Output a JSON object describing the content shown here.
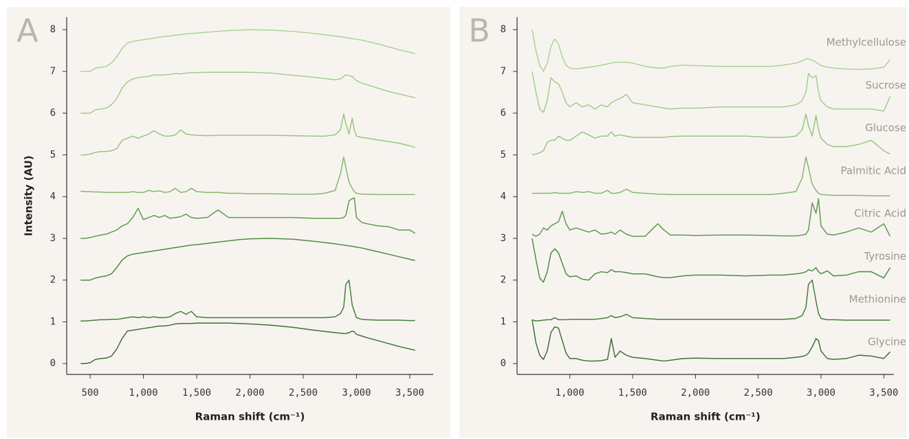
{
  "chart_data": [
    {
      "type": "line",
      "label": "A",
      "xlabel": "Raman shift (cm⁻¹)",
      "ylabel": "Intensity (AU)",
      "xlim": [
        280,
        3720
      ],
      "ylim": [
        -0.26,
        8.3
      ],
      "xticks": [
        500,
        {
          "value": 1000,
          "label": "1,000"
        },
        {
          "value": 1500,
          "label": "1,500"
        },
        {
          "value": 2000,
          "label": "2,000"
        },
        {
          "value": 2500,
          "label": "2,500"
        },
        {
          "value": 3000,
          "label": "3,000"
        },
        {
          "value": 3500,
          "label": "3,500"
        }
      ],
      "yticks": [
        0,
        1,
        2,
        3,
        4,
        5,
        6,
        7,
        8
      ],
      "x": [
        410,
        450,
        500,
        550,
        600,
        650,
        700,
        750,
        800,
        850,
        900,
        950,
        1000,
        1050,
        1100,
        1150,
        1200,
        1250,
        1300,
        1350,
        1400,
        1450,
        1500,
        1600,
        1700,
        1800,
        1900,
        2000,
        2200,
        2400,
        2600,
        2700,
        2800,
        2850,
        2880,
        2900,
        2930,
        2960,
        2980,
        3000,
        3050,
        3100,
        3200,
        3300,
        3400,
        3500,
        3550
      ],
      "series": [
        {
          "color": "#acd391",
          "values": [
            7.0,
            7.0,
            7.0,
            7.08,
            7.1,
            7.12,
            7.2,
            7.35,
            7.55,
            7.68,
            7.72,
            7.74,
            7.76,
            7.78,
            7.8,
            7.82,
            7.84,
            7.85,
            7.87,
            7.88,
            7.9,
            7.91,
            7.92,
            7.94,
            7.96,
            7.98,
            7.99,
            8.0,
            7.99,
            7.96,
            7.91,
            7.88,
            7.85,
            7.83,
            7.82,
            7.81,
            7.8,
            7.79,
            7.78,
            7.77,
            7.75,
            7.72,
            7.66,
            7.59,
            7.52,
            7.46,
            7.43
          ]
        },
        {
          "color": "#a2cd88",
          "values": [
            6.0,
            6.0,
            6.0,
            6.08,
            6.1,
            6.12,
            6.2,
            6.35,
            6.6,
            6.75,
            6.82,
            6.85,
            6.87,
            6.88,
            6.92,
            6.91,
            6.92,
            6.93,
            6.95,
            6.94,
            6.96,
            6.97,
            6.97,
            6.98,
            6.98,
            6.98,
            6.98,
            6.98,
            6.96,
            6.91,
            6.86,
            6.83,
            6.8,
            6.82,
            6.88,
            6.92,
            6.9,
            6.88,
            6.82,
            6.78,
            6.72,
            6.68,
            6.6,
            6.52,
            6.46,
            6.4,
            6.37
          ]
        },
        {
          "color": "#97c67d",
          "values": [
            5.0,
            5.0,
            5.02,
            5.06,
            5.08,
            5.08,
            5.1,
            5.15,
            5.35,
            5.4,
            5.45,
            5.4,
            5.45,
            5.5,
            5.58,
            5.5,
            5.45,
            5.45,
            5.48,
            5.6,
            5.5,
            5.48,
            5.47,
            5.46,
            5.47,
            5.47,
            5.47,
            5.47,
            5.47,
            5.46,
            5.45,
            5.45,
            5.48,
            5.6,
            5.98,
            5.75,
            5.5,
            5.88,
            5.6,
            5.45,
            5.42,
            5.4,
            5.36,
            5.32,
            5.28,
            5.22,
            5.18
          ]
        },
        {
          "color": "#84b86c",
          "values": [
            4.13,
            4.12,
            4.12,
            4.11,
            4.11,
            4.1,
            4.1,
            4.1,
            4.1,
            4.1,
            4.12,
            4.1,
            4.1,
            4.15,
            4.12,
            4.14,
            4.1,
            4.12,
            4.2,
            4.1,
            4.12,
            4.2,
            4.12,
            4.1,
            4.1,
            4.08,
            4.08,
            4.07,
            4.07,
            4.06,
            4.06,
            4.08,
            4.15,
            4.55,
            4.95,
            4.7,
            4.35,
            4.2,
            4.12,
            4.08,
            4.06,
            4.06,
            4.05,
            4.05,
            4.05,
            4.05,
            4.05
          ]
        },
        {
          "color": "#5f9b4d",
          "values": [
            3.0,
            3.0,
            3.02,
            3.05,
            3.08,
            3.1,
            3.15,
            3.2,
            3.3,
            3.35,
            3.5,
            3.72,
            3.45,
            3.5,
            3.55,
            3.5,
            3.55,
            3.48,
            3.5,
            3.52,
            3.58,
            3.5,
            3.48,
            3.5,
            3.68,
            3.5,
            3.5,
            3.5,
            3.5,
            3.5,
            3.48,
            3.48,
            3.48,
            3.48,
            3.5,
            3.55,
            3.9,
            3.95,
            3.97,
            3.5,
            3.38,
            3.35,
            3.3,
            3.28,
            3.2,
            3.2,
            3.12
          ]
        },
        {
          "color": "#4e8b41",
          "values": [
            2.0,
            2.0,
            2.0,
            2.05,
            2.08,
            2.1,
            2.15,
            2.3,
            2.48,
            2.58,
            2.62,
            2.64,
            2.66,
            2.68,
            2.7,
            2.72,
            2.74,
            2.76,
            2.78,
            2.8,
            2.82,
            2.84,
            2.85,
            2.88,
            2.91,
            2.94,
            2.97,
            2.99,
            3.0,
            2.98,
            2.93,
            2.9,
            2.87,
            2.85,
            2.84,
            2.83,
            2.82,
            2.81,
            2.8,
            2.79,
            2.77,
            2.74,
            2.68,
            2.62,
            2.56,
            2.5,
            2.47
          ]
        },
        {
          "color": "#457d3b",
          "values": [
            1.02,
            1.02,
            1.03,
            1.04,
            1.05,
            1.05,
            1.06,
            1.06,
            1.08,
            1.1,
            1.12,
            1.1,
            1.12,
            1.1,
            1.12,
            1.1,
            1.1,
            1.12,
            1.2,
            1.25,
            1.18,
            1.25,
            1.12,
            1.1,
            1.1,
            1.1,
            1.1,
            1.1,
            1.1,
            1.1,
            1.1,
            1.1,
            1.12,
            1.2,
            1.35,
            1.9,
            2.0,
            1.4,
            1.25,
            1.1,
            1.06,
            1.05,
            1.04,
            1.04,
            1.04,
            1.03,
            1.03
          ]
        },
        {
          "color": "#3f7035",
          "values": [
            0,
            0,
            0.02,
            0.1,
            0.12,
            0.13,
            0.18,
            0.35,
            0.6,
            0.78,
            0.8,
            0.82,
            0.84,
            0.86,
            0.88,
            0.9,
            0.9,
            0.92,
            0.95,
            0.96,
            0.96,
            0.96,
            0.97,
            0.97,
            0.97,
            0.97,
            0.96,
            0.95,
            0.92,
            0.87,
            0.8,
            0.77,
            0.74,
            0.73,
            0.72,
            0.72,
            0.74,
            0.78,
            0.76,
            0.7,
            0.66,
            0.62,
            0.55,
            0.48,
            0.41,
            0.35,
            0.32
          ]
        }
      ]
    },
    {
      "type": "line",
      "label": "B",
      "xlabel": "Raman shift (cm⁻¹)",
      "xlim": [
        580,
        3580
      ],
      "ylim": [
        -0.26,
        8.3
      ],
      "xticks": [
        {
          "value": 1000,
          "label": "1,000"
        },
        {
          "value": 1500,
          "label": "1,500"
        },
        {
          "value": 2000,
          "label": "2,000"
        },
        {
          "value": 2500,
          "label": "2,500"
        },
        {
          "value": 3000,
          "label": "3,000"
        },
        {
          "value": 3500,
          "label": "3,500"
        }
      ],
      "yticks": [
        0,
        1,
        2,
        3,
        4,
        5,
        6,
        7,
        8
      ],
      "x": [
        700,
        730,
        760,
        790,
        820,
        850,
        880,
        910,
        940,
        970,
        1000,
        1050,
        1100,
        1150,
        1200,
        1250,
        1300,
        1330,
        1360,
        1400,
        1450,
        1500,
        1600,
        1700,
        1750,
        1800,
        1900,
        2000,
        2200,
        2400,
        2600,
        2700,
        2800,
        2850,
        2880,
        2900,
        2930,
        2960,
        2980,
        3000,
        3050,
        3100,
        3200,
        3300,
        3400,
        3500,
        3550
      ],
      "series": [
        {
          "name": "Methylcellulose",
          "color": "#acd391",
          "values": [
            8.0,
            7.5,
            7.15,
            7.0,
            7.2,
            7.6,
            7.78,
            7.65,
            7.35,
            7.15,
            7.08,
            7.06,
            7.08,
            7.1,
            7.12,
            7.15,
            7.18,
            7.2,
            7.22,
            7.22,
            7.22,
            7.2,
            7.12,
            7.08,
            7.08,
            7.12,
            7.15,
            7.14,
            7.12,
            7.12,
            7.12,
            7.15,
            7.2,
            7.25,
            7.3,
            7.3,
            7.27,
            7.22,
            7.18,
            7.14,
            7.1,
            7.08,
            7.06,
            7.05,
            7.06,
            7.1,
            7.28
          ]
        },
        {
          "name": "Sucrose",
          "color": "#a2cd88",
          "values": [
            7.0,
            6.5,
            6.1,
            6.02,
            6.3,
            6.85,
            6.75,
            6.7,
            6.5,
            6.25,
            6.15,
            6.25,
            6.15,
            6.2,
            6.1,
            6.2,
            6.15,
            6.25,
            6.3,
            6.35,
            6.45,
            6.25,
            6.2,
            6.15,
            6.12,
            6.1,
            6.12,
            6.12,
            6.15,
            6.15,
            6.15,
            6.15,
            6.2,
            6.3,
            6.5,
            6.95,
            6.85,
            6.9,
            6.5,
            6.3,
            6.15,
            6.1,
            6.1,
            6.1,
            6.1,
            6.05,
            6.4
          ]
        },
        {
          "name": "Glucose",
          "color": "#97c67d",
          "values": [
            5.0,
            5.02,
            5.05,
            5.1,
            5.3,
            5.35,
            5.35,
            5.45,
            5.4,
            5.35,
            5.35,
            5.45,
            5.55,
            5.48,
            5.4,
            5.45,
            5.45,
            5.55,
            5.45,
            5.48,
            5.45,
            5.42,
            5.42,
            5.42,
            5.42,
            5.44,
            5.45,
            5.45,
            5.45,
            5.45,
            5.42,
            5.42,
            5.45,
            5.6,
            5.98,
            5.7,
            5.45,
            5.95,
            5.6,
            5.4,
            5.25,
            5.2,
            5.2,
            5.25,
            5.35,
            5.1,
            5.02
          ]
        },
        {
          "name": "Palmitic Acid",
          "color": "#84b86c",
          "values": [
            4.08,
            4.08,
            4.08,
            4.08,
            4.08,
            4.08,
            4.1,
            4.08,
            4.08,
            4.08,
            4.08,
            4.12,
            4.1,
            4.12,
            4.08,
            4.08,
            4.15,
            4.08,
            4.08,
            4.1,
            4.18,
            4.1,
            4.08,
            4.06,
            4.06,
            4.05,
            4.05,
            4.05,
            4.05,
            4.05,
            4.05,
            4.08,
            4.12,
            4.45,
            4.95,
            4.7,
            4.3,
            4.15,
            4.08,
            4.05,
            4.04,
            4.03,
            4.03,
            4.03,
            4.02,
            4.02,
            4.02
          ]
        },
        {
          "name": "Citric Acid",
          "color": "#5f9b4d",
          "values": [
            3.1,
            3.05,
            3.1,
            3.25,
            3.2,
            3.3,
            3.35,
            3.4,
            3.65,
            3.35,
            3.2,
            3.25,
            3.2,
            3.15,
            3.2,
            3.1,
            3.12,
            3.15,
            3.1,
            3.2,
            3.1,
            3.05,
            3.05,
            3.35,
            3.2,
            3.08,
            3.08,
            3.07,
            3.08,
            3.08,
            3.07,
            3.06,
            3.06,
            3.08,
            3.1,
            3.2,
            3.85,
            3.6,
            3.95,
            3.3,
            3.1,
            3.08,
            3.15,
            3.25,
            3.15,
            3.35,
            3.05
          ]
        },
        {
          "name": "Tyrosine",
          "color": "#4e8b41",
          "values": [
            3.0,
            2.5,
            2.05,
            1.95,
            2.2,
            2.65,
            2.75,
            2.65,
            2.4,
            2.15,
            2.08,
            2.1,
            2.02,
            2.0,
            2.15,
            2.2,
            2.18,
            2.25,
            2.2,
            2.2,
            2.18,
            2.15,
            2.15,
            2.08,
            2.06,
            2.06,
            2.1,
            2.12,
            2.12,
            2.1,
            2.12,
            2.12,
            2.15,
            2.17,
            2.2,
            2.25,
            2.22,
            2.3,
            2.2,
            2.15,
            2.22,
            2.1,
            2.12,
            2.2,
            2.2,
            2.05,
            2.3
          ]
        },
        {
          "name": "Methionine",
          "color": "#457d3b",
          "values": [
            1.05,
            1.02,
            1.03,
            1.04,
            1.05,
            1.05,
            1.1,
            1.05,
            1.05,
            1.05,
            1.06,
            1.06,
            1.06,
            1.06,
            1.06,
            1.08,
            1.1,
            1.15,
            1.1,
            1.12,
            1.18,
            1.1,
            1.08,
            1.06,
            1.06,
            1.06,
            1.06,
            1.06,
            1.06,
            1.06,
            1.06,
            1.06,
            1.08,
            1.15,
            1.35,
            1.9,
            2.0,
            1.5,
            1.2,
            1.08,
            1.05,
            1.05,
            1.04,
            1.04,
            1.04,
            1.04,
            1.04
          ]
        },
        {
          "name": "Glycine",
          "color": "#3f7035",
          "values": [
            1.05,
            0.5,
            0.2,
            0.1,
            0.3,
            0.75,
            0.88,
            0.85,
            0.55,
            0.25,
            0.12,
            0.12,
            0.08,
            0.06,
            0.06,
            0.07,
            0.1,
            0.6,
            0.15,
            0.3,
            0.2,
            0.15,
            0.12,
            0.08,
            0.06,
            0.08,
            0.12,
            0.13,
            0.12,
            0.12,
            0.12,
            0.12,
            0.15,
            0.17,
            0.2,
            0.25,
            0.4,
            0.6,
            0.55,
            0.3,
            0.12,
            0.1,
            0.12,
            0.2,
            0.18,
            0.12,
            0.28
          ]
        }
      ]
    }
  ]
}
